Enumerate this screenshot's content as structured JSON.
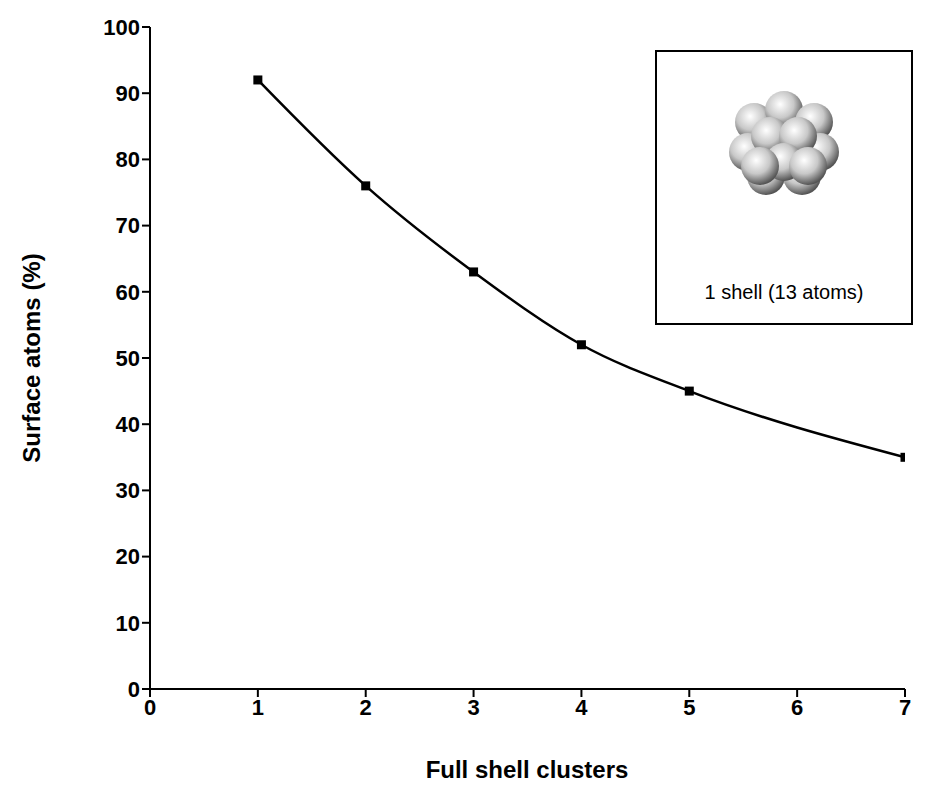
{
  "chart_data": {
    "type": "line",
    "x_label": "Full shell clusters",
    "y_label": "Surface atoms (%)",
    "annotation": "1 shell (13 atoms)",
    "x": [
      1,
      2,
      3,
      4,
      5,
      7
    ],
    "values": [
      92,
      76,
      63,
      52,
      45,
      35
    ],
    "color": "#000000",
    "marker": "square",
    "line_style": "solid",
    "xlim": [
      0,
      7
    ],
    "xticks": [
      0,
      1,
      2,
      3,
      4,
      5,
      6,
      7
    ],
    "ylim": [
      0,
      100
    ],
    "yticks": [
      0,
      10,
      20,
      30,
      40,
      50,
      60,
      70,
      80,
      90,
      100
    ],
    "grid": false
  }
}
